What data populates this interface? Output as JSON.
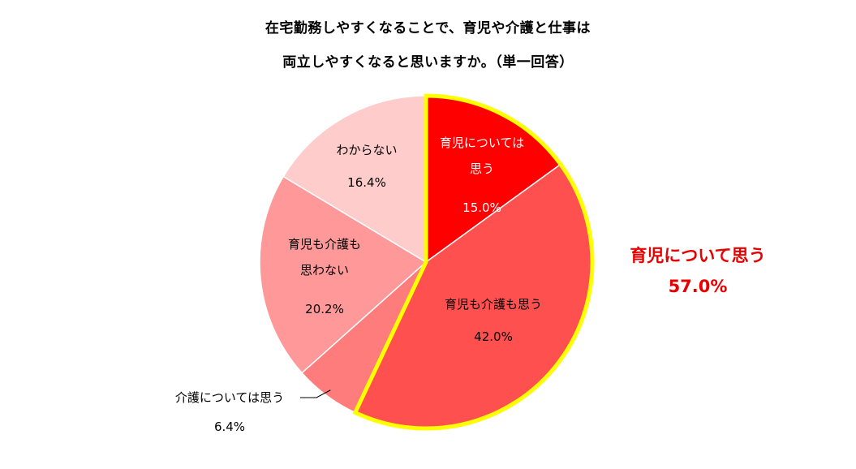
{
  "chart_data": {
    "type": "pie",
    "title_lines": [
      "在宅勤務しやすくなることで、育児や介護と仕事は",
      "両立しやすくなると思いますか。（単一回答）"
    ],
    "slices": [
      {
        "id": "ikuji-only",
        "label_lines": [
          "育児については",
          "思う"
        ],
        "value": 15.0,
        "value_label": "15.0%",
        "color": "#ff0000",
        "text": "light"
      },
      {
        "id": "both",
        "label_lines": [
          "育児も介護も思う"
        ],
        "value": 42.0,
        "value_label": "42.0%",
        "color": "#ff5050",
        "text": "dark"
      },
      {
        "id": "kaigo-only",
        "label_lines": [
          "介護については思う"
        ],
        "value": 6.4,
        "value_label": "6.4%",
        "color": "#ff7c7c",
        "text": "dark"
      },
      {
        "id": "neither",
        "label_lines": [
          "育児も介護も",
          "思わない"
        ],
        "value": 20.2,
        "value_label": "20.2%",
        "color": "#ff9999",
        "text": "dark"
      },
      {
        "id": "unknown",
        "label_lines": [
          "わからない"
        ],
        "value": 16.4,
        "value_label": "16.4%",
        "color": "#ffcccc",
        "text": "dark"
      }
    ],
    "highlight": {
      "slices": [
        "ikuji-only",
        "both"
      ],
      "outline_color": "#ffff00",
      "label": "育児について思う",
      "value_label": "57.0%"
    },
    "colors": {
      "callout": "#e60000"
    }
  }
}
